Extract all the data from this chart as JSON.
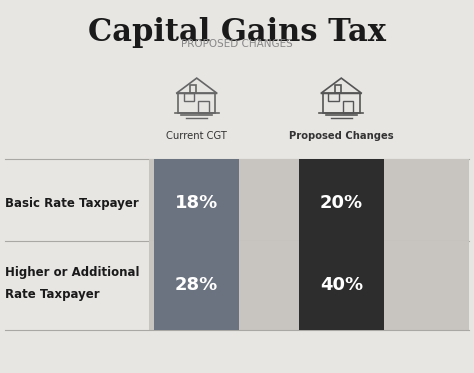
{
  "title": "Capital Gains Tax",
  "subtitle": "PROPOSED CHANGES",
  "bg_color": "#e8e6e3",
  "col1_label": "Current CGT",
  "col2_label": "Proposed Changes",
  "rows": [
    {
      "label_line1": "Basic Rate Taxpayer",
      "label_line2": "",
      "val1": "18%",
      "val2": "20%",
      "color1": "#6b7280",
      "color2": "#2d2d2d",
      "bar_bg": "#c8c4bf"
    },
    {
      "label_line1": "Higher or Additional",
      "label_line2": "Rate Taxpayer",
      "val1": "28%",
      "val2": "40%",
      "color1": "#6b7280",
      "color2": "#2d2d2d",
      "bar_bg": "#c8c4bf"
    }
  ],
  "divider_color": "#aaa8a5",
  "label_color": "#1a1a1a",
  "title_color": "#1a1a1a",
  "subtitle_color": "#888888",
  "col_label_color": "#333333"
}
